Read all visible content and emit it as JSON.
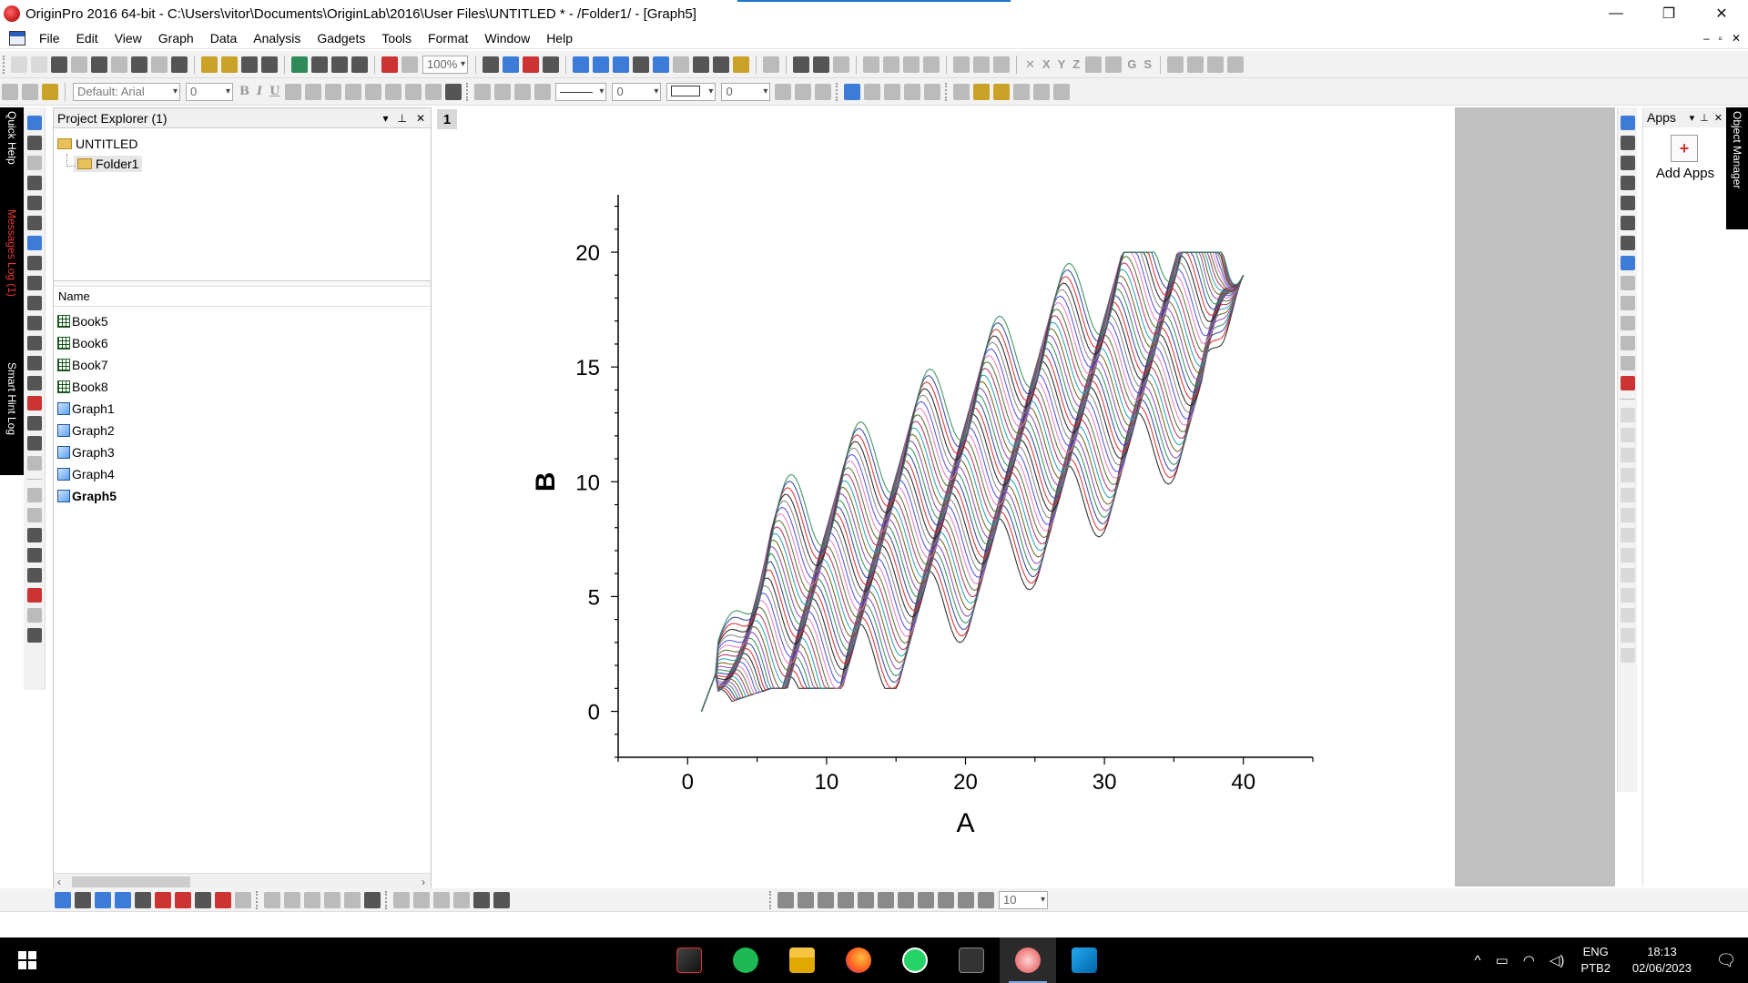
{
  "window": {
    "title": "OriginPro 2016 64-bit - C:\\Users\\vitor\\Documents\\OriginLab\\2016\\User Files\\UNTITLED * - /Folder1/ - [Graph5]",
    "minimize": "—",
    "maximize": "❐",
    "close": "✕"
  },
  "menu": {
    "items": [
      "File",
      "Edit",
      "View",
      "Graph",
      "Data",
      "Analysis",
      "Gadgets",
      "Tools",
      "Format",
      "Window",
      "Help"
    ],
    "mdi_min": "–",
    "mdi_restore": "▫",
    "mdi_close": "✕"
  },
  "toolbar": {
    "zoom": "100%",
    "font": "Default: Arial",
    "font_size": "0",
    "line_width": "0",
    "border_width": "0",
    "bold": "B",
    "italic": "I",
    "underline": "U",
    "axis_x": "X",
    "axis_y": "Y",
    "axis_z": "Z",
    "g_label": "G",
    "s_label": "S"
  },
  "docks": {
    "quick_help": "Quick Help",
    "messages_log": "Messages Log (1)",
    "smart_hint_log": "Smart Hint Log",
    "object_manager": "Object Manager"
  },
  "project_explorer": {
    "title": "Project Explorer (1)",
    "root": "UNTITLED",
    "folder": "Folder1",
    "column_header": "Name",
    "items": [
      {
        "name": "Book5",
        "type": "book"
      },
      {
        "name": "Book6",
        "type": "book"
      },
      {
        "name": "Book7",
        "type": "book"
      },
      {
        "name": "Book8",
        "type": "book"
      },
      {
        "name": "Graph1",
        "type": "graph"
      },
      {
        "name": "Graph2",
        "type": "graph"
      },
      {
        "name": "Graph3",
        "type": "graph"
      },
      {
        "name": "Graph4",
        "type": "graph"
      },
      {
        "name": "Graph5",
        "type": "graph",
        "active": true
      }
    ]
  },
  "graph": {
    "layer_label": "1"
  },
  "apps": {
    "title": "Apps",
    "add_apps": "Add Apps"
  },
  "bottom": {
    "size_value": "10"
  },
  "taskbar": {
    "apps": [
      "armoury-crate",
      "spotify",
      "file-explorer",
      "firefox",
      "whatsapp",
      "terminal",
      "originpro",
      "vscode"
    ],
    "language_top": "ENG",
    "language_bottom": "PTB2",
    "time": "18:13",
    "date": "02/06/2023"
  },
  "chart_data": {
    "type": "line",
    "title": "",
    "xlabel": "A",
    "ylabel": "B",
    "xlim": [
      -5,
      45
    ],
    "ylim": [
      -2,
      22.5
    ],
    "xticks": [
      0,
      10,
      20,
      30,
      40
    ],
    "yticks": [
      0,
      5,
      10,
      15,
      20
    ],
    "grid": false,
    "legend": "none",
    "series_description_values": {
      "count": 40,
      "shape": "sinusoidal oscillation with amplitude about 2, period about 5 units of A, riding on a rising baseline; each successive series is shifted one unit to the right",
      "start_point": [
        1,
        0
      ],
      "end_point": [
        40,
        19
      ],
      "y_range": [
        0,
        20
      ]
    },
    "colors": [
      "#1f1f1f",
      "#d62728",
      "#2c3e9e",
      "#2e8b57",
      "#8e44ad",
      "#6b5b12",
      "#1f9bb4",
      "#b03060",
      "#556b2f",
      "#e377c2",
      "#4b4bd6",
      "#7f7f7f"
    ]
  }
}
